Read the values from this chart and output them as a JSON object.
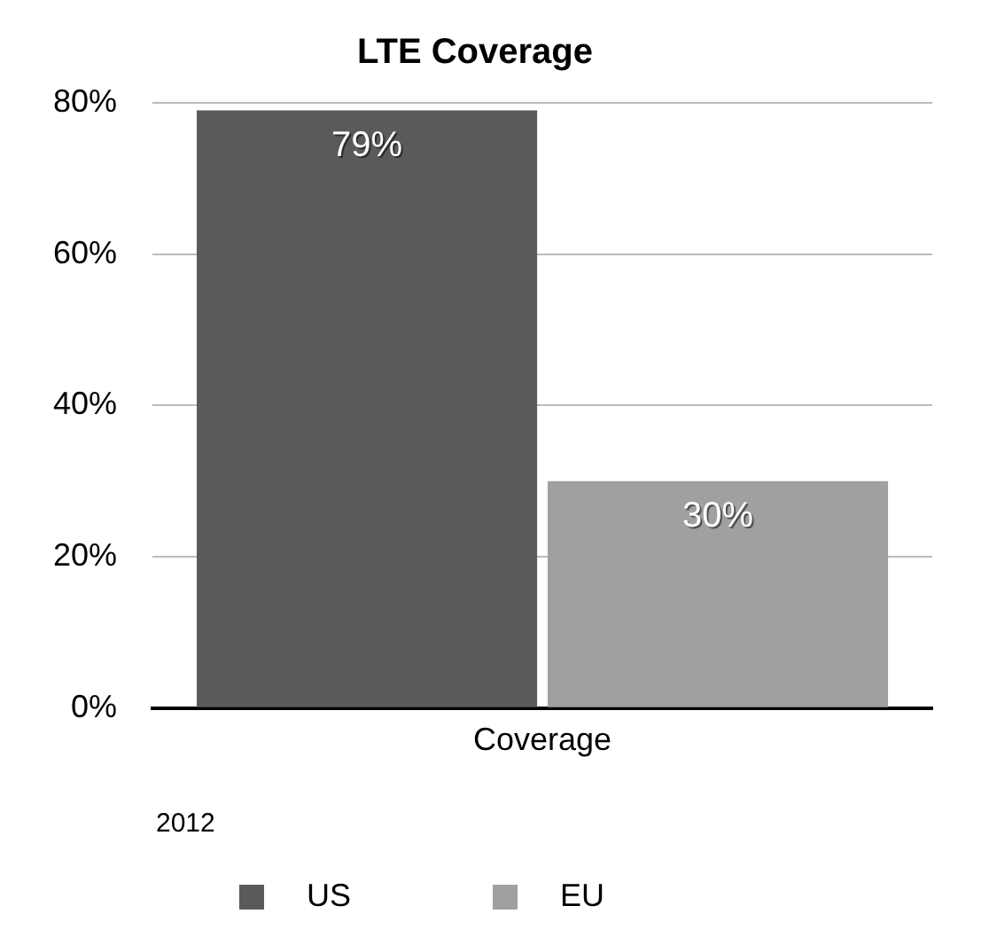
{
  "chart_data": {
    "type": "bar",
    "title": "LTE Coverage",
    "categories": [
      "Coverage"
    ],
    "series": [
      {
        "name": "US",
        "color": "#5a5a5a",
        "values": [
          79
        ],
        "value_labels": [
          "79%"
        ]
      },
      {
        "name": "EU",
        "color": "#a0a0a0",
        "values": [
          30
        ],
        "value_labels": [
          "30%"
        ]
      }
    ],
    "ylim": [
      0,
      80
    ],
    "yticks": [
      {
        "value": 0,
        "label": "0%"
      },
      {
        "value": 20,
        "label": "20%"
      },
      {
        "value": 40,
        "label": "40%"
      },
      {
        "value": 60,
        "label": "60%"
      },
      {
        "value": 80,
        "label": "80%"
      }
    ],
    "grid": "y",
    "legend": "bottom",
    "annotations": [
      "2012"
    ]
  }
}
